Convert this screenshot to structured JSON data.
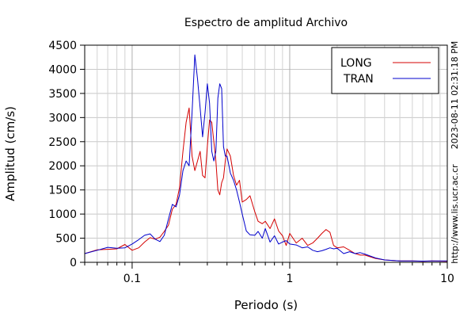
{
  "chart_data": {
    "type": "line",
    "title": "Espectro de amplitud Archivo",
    "xlabel": "Periodo (s)",
    "ylabel": "Amplitud (cm/s)",
    "x_scale": "log",
    "xlim": [
      0.05,
      10
    ],
    "ylim": [
      0,
      4500
    ],
    "x_ticks": [
      0.1,
      1,
      10
    ],
    "x_tick_labels": [
      "0.1",
      "1",
      "10"
    ],
    "y_ticks": [
      0,
      500,
      1000,
      1500,
      2000,
      2500,
      3000,
      3500,
      4000,
      4500
    ],
    "y_tick_labels": [
      "0",
      "500",
      "1000",
      "1500",
      "2000",
      "2500",
      "3000",
      "3500",
      "4000",
      "4500"
    ],
    "grid": true,
    "legend": "top-right",
    "series": [
      {
        "name": "LONG",
        "color": "#d40000",
        "x": [
          0.05,
          0.06,
          0.07,
          0.08,
          0.09,
          0.1,
          0.11,
          0.12,
          0.13,
          0.14,
          0.15,
          0.16,
          0.17,
          0.18,
          0.19,
          0.2,
          0.21,
          0.22,
          0.23,
          0.24,
          0.25,
          0.26,
          0.27,
          0.28,
          0.29,
          0.3,
          0.31,
          0.32,
          0.33,
          0.34,
          0.35,
          0.36,
          0.37,
          0.38,
          0.39,
          0.4,
          0.42,
          0.44,
          0.46,
          0.48,
          0.5,
          0.53,
          0.56,
          0.6,
          0.63,
          0.67,
          0.7,
          0.75,
          0.8,
          0.85,
          0.9,
          0.95,
          1.0,
          1.1,
          1.2,
          1.3,
          1.4,
          1.5,
          1.6,
          1.7,
          1.8,
          1.9,
          2.0,
          2.2,
          2.4,
          2.6,
          2.8,
          3.0,
          3.5,
          4.0,
          5.0,
          6.0,
          7.0,
          8.0,
          10.0
        ],
        "values": [
          180,
          260,
          270,
          280,
          370,
          250,
          300,
          420,
          510,
          480,
          520,
          640,
          770,
          1100,
          1200,
          1550,
          2300,
          2900,
          3200,
          2200,
          1900,
          2100,
          2300,
          1800,
          1750,
          2400,
          2950,
          2900,
          2500,
          2100,
          1500,
          1400,
          1650,
          1750,
          2100,
          2350,
          2200,
          1800,
          1600,
          1700,
          1250,
          1300,
          1380,
          1050,
          850,
          800,
          850,
          700,
          900,
          650,
          550,
          350,
          600,
          400,
          500,
          350,
          400,
          500,
          600,
          680,
          620,
          350,
          300,
          320,
          250,
          180,
          150,
          150,
          80,
          50,
          30,
          30,
          20,
          30,
          20
        ]
      },
      {
        "name": "TRAN",
        "color": "#0000cc",
        "x": [
          0.05,
          0.06,
          0.07,
          0.08,
          0.09,
          0.1,
          0.11,
          0.12,
          0.13,
          0.14,
          0.15,
          0.16,
          0.17,
          0.18,
          0.19,
          0.2,
          0.21,
          0.22,
          0.23,
          0.24,
          0.25,
          0.26,
          0.27,
          0.28,
          0.29,
          0.3,
          0.31,
          0.32,
          0.33,
          0.34,
          0.35,
          0.36,
          0.37,
          0.38,
          0.39,
          0.4,
          0.42,
          0.44,
          0.46,
          0.48,
          0.5,
          0.53,
          0.56,
          0.6,
          0.63,
          0.67,
          0.7,
          0.75,
          0.8,
          0.85,
          0.9,
          0.95,
          1.0,
          1.1,
          1.2,
          1.3,
          1.4,
          1.5,
          1.6,
          1.7,
          1.8,
          1.9,
          2.0,
          2.2,
          2.4,
          2.6,
          2.8,
          3.0,
          3.5,
          4.0,
          5.0,
          6.0,
          7.0,
          8.0,
          10.0
        ],
        "values": [
          180,
          250,
          310,
          290,
          300,
          380,
          470,
          560,
          590,
          480,
          430,
          560,
          900,
          1200,
          1150,
          1400,
          1900,
          2100,
          2000,
          3100,
          4300,
          3800,
          3200,
          2600,
          3100,
          3700,
          3300,
          2300,
          2100,
          2300,
          3400,
          3700,
          3600,
          2400,
          2200,
          2200,
          1850,
          1700,
          1500,
          1250,
          1000,
          650,
          570,
          560,
          640,
          500,
          700,
          420,
          550,
          380,
          420,
          450,
          380,
          360,
          300,
          320,
          250,
          220,
          240,
          270,
          300,
          280,
          290,
          180,
          220,
          180,
          200,
          170,
          90,
          50,
          30,
          30,
          25,
          30,
          30
        ]
      }
    ]
  },
  "side_texts": {
    "timestamp": "2023-08-11 02:31:18 PM",
    "url": "http://www.lis.ucr.ac.cr"
  }
}
